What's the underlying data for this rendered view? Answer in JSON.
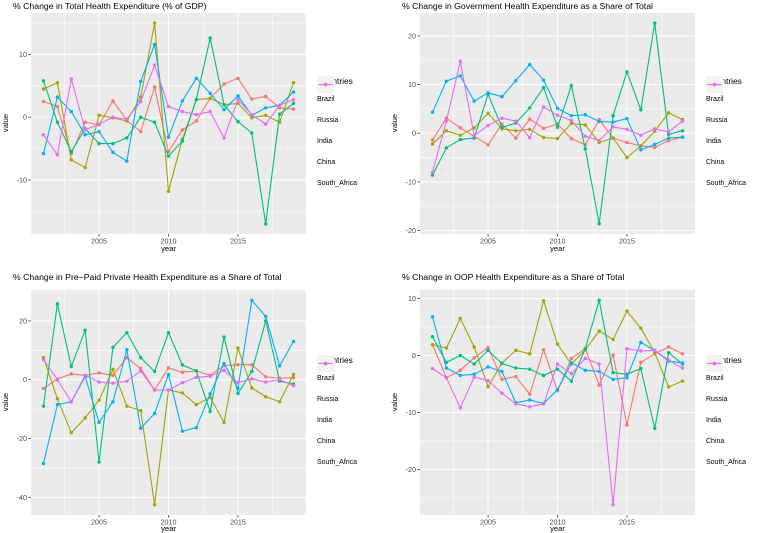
{
  "figure": {
    "background": "#FFFFFF",
    "panel_background": "#EBEBEB",
    "grid_color": "#FFFFFF",
    "tick_text_color": "#4D4D4D",
    "tick_mark_color": "#333333"
  },
  "legend": {
    "title": "Countries",
    "position": "right",
    "entries": [
      "Brazil",
      "Russia",
      "India",
      "China",
      "South_Africa"
    ]
  },
  "palette": {
    "Brazil": "#F8766D",
    "Russia": "#A3A500",
    "India": "#00BF7D",
    "China": "#00B0F6",
    "South_Africa": "#E76BF3"
  },
  "chart_data": [
    {
      "type": "line",
      "title": "% Change in Total Health Expenditure (% of GDP)",
      "xlabel": "year",
      "ylabel": "value",
      "legend_title": "Countries",
      "legend_position": "right",
      "grid": true,
      "x": [
        2001,
        2002,
        2003,
        2004,
        2005,
        2006,
        2007,
        2008,
        2009,
        2010,
        2011,
        2012,
        2013,
        2014,
        2015,
        2016,
        2017,
        2018,
        2019
      ],
      "x_ticks": [
        2005,
        2010,
        2015
      ],
      "x_minor": [
        2002.5,
        2007.5,
        2012.5,
        2017.5
      ],
      "xlim": [
        2000.1,
        2019.9
      ],
      "y_ticks": [
        -10,
        0,
        10
      ],
      "y_minor": [
        -15,
        -5,
        5,
        15
      ],
      "ylim": [
        -18.6,
        16.6
      ],
      "series": [
        {
          "name": "Brazil",
          "color": "#F8766D",
          "values": [
            2.5,
            1.7,
            -5.8,
            -0.8,
            -1.2,
            2.6,
            -0.5,
            -2.3,
            4.8,
            -5.5,
            -2.0,
            -0.6,
            3.0,
            5.3,
            6.2,
            2.9,
            3.3,
            1.5,
            1.3
          ]
        },
        {
          "name": "Russia",
          "color": "#A3A500",
          "values": [
            4.5,
            5.5,
            -6.8,
            -8.0,
            0.3,
            -0.1,
            -0.6,
            3.2,
            15.0,
            -11.8,
            -3.5,
            2.8,
            3.0,
            2.0,
            2.2,
            -0.1,
            0.3,
            -0.8,
            5.5
          ]
        },
        {
          "name": "India",
          "color": "#00BF7D",
          "values": [
            5.8,
            -0.8,
            -5.5,
            -1.8,
            -4.2,
            -4.2,
            -3.3,
            0.0,
            -0.8,
            -6.2,
            -3.8,
            2.8,
            12.6,
            2.0,
            -0.7,
            -2.5,
            -17.0,
            0.5,
            2.2
          ]
        },
        {
          "name": "China",
          "color": "#00B0F6",
          "values": [
            -5.8,
            3.2,
            0.9,
            -2.8,
            -2.3,
            -5.6,
            -7.0,
            5.7,
            11.6,
            -3.2,
            2.6,
            6.2,
            3.8,
            1.2,
            3.4,
            0.3,
            1.5,
            1.9,
            4.0
          ]
        },
        {
          "name": "South_Africa",
          "color": "#E76BF3",
          "values": [
            -2.8,
            -6.0,
            6.1,
            -2.0,
            -1.1,
            0.0,
            -0.3,
            2.5,
            8.3,
            1.7,
            0.9,
            0.4,
            0.9,
            -3.3,
            2.8,
            0.4,
            -1.1,
            1.9,
            2.8
          ]
        }
      ]
    },
    {
      "type": "line",
      "title": "% Change in Government Health Expenditure as a Share of Total",
      "xlabel": "year",
      "ylabel": "value",
      "legend_title": "Countries",
      "legend_position": "right",
      "grid": true,
      "x": [
        2001,
        2002,
        2003,
        2004,
        2005,
        2006,
        2007,
        2008,
        2009,
        2010,
        2011,
        2012,
        2013,
        2014,
        2015,
        2016,
        2017,
        2018,
        2019
      ],
      "x_ticks": [
        2005,
        2010,
        2015
      ],
      "x_minor": [
        2002.5,
        2007.5,
        2012.5,
        2017.5
      ],
      "xlim": [
        2000.1,
        2019.9
      ],
      "y_ticks": [
        -20,
        -10,
        0,
        10,
        20
      ],
      "y_minor": [
        -15,
        -5,
        5,
        15
      ],
      "ylim": [
        -20.7,
        24.7
      ],
      "series": [
        {
          "name": "Brazil",
          "color": "#F8766D",
          "values": [
            -1.4,
            3.1,
            1.1,
            -0.6,
            -2.4,
            1.9,
            -1.0,
            2.9,
            1.0,
            1.9,
            -1.1,
            -2.4,
            2.8,
            -1.0,
            -1.9,
            -2.6,
            -2.9,
            -1.5,
            -0.8
          ]
        },
        {
          "name": "Russia",
          "color": "#A3A500",
          "values": [
            -2.2,
            0.5,
            -0.4,
            1.1,
            4.1,
            0.9,
            0.5,
            0.8,
            -0.9,
            -1.1,
            2.0,
            1.7,
            -1.9,
            -1.0,
            -5.0,
            -2.6,
            0.4,
            4.2,
            2.8
          ]
        },
        {
          "name": "India",
          "color": "#00BF7D",
          "values": [
            -8.6,
            -3.0,
            -1.3,
            -1.0,
            8.0,
            1.2,
            2.1,
            5.2,
            9.4,
            1.2,
            9.8,
            -3.2,
            -18.6,
            3.6,
            12.6,
            4.8,
            22.6,
            -0.2,
            0.5
          ]
        },
        {
          "name": "China",
          "color": "#00B0F6",
          "values": [
            4.3,
            10.7,
            11.8,
            6.6,
            8.3,
            7.5,
            10.8,
            14.1,
            10.9,
            5.1,
            3.6,
            3.8,
            2.4,
            2.3,
            3.0,
            -3.4,
            -2.3,
            -1.0,
            -0.8
          ]
        },
        {
          "name": "South_Africa",
          "color": "#E76BF3",
          "values": [
            -8.0,
            2.5,
            14.8,
            -0.5,
            1.6,
            3.1,
            2.5,
            -0.9,
            5.4,
            3.7,
            2.6,
            -0.6,
            -1.5,
            1.3,
            0.8,
            -0.4,
            0.9,
            0.3,
            2.5
          ]
        }
      ]
    },
    {
      "type": "line",
      "title": "% Change in Pre−Paid Private Health Expenditure as a Share of Total",
      "xlabel": "year",
      "ylabel": "value",
      "legend_title": "Countries",
      "legend_position": "right",
      "grid": true,
      "x": [
        2001,
        2002,
        2003,
        2004,
        2005,
        2006,
        2007,
        2008,
        2009,
        2010,
        2011,
        2012,
        2013,
        2014,
        2015,
        2016,
        2017,
        2018,
        2019
      ],
      "x_ticks": [
        2005,
        2010,
        2015
      ],
      "x_minor": [
        2002.5,
        2007.5,
        2012.5,
        2017.5
      ],
      "xlim": [
        2000.1,
        2019.9
      ],
      "y_ticks": [
        -40,
        -20,
        0,
        20
      ],
      "y_minor": [
        -30,
        -10,
        10,
        30
      ],
      "ylim": [
        -46,
        30.5
      ],
      "series": [
        {
          "name": "Brazil",
          "color": "#F8766D",
          "values": [
            -3.0,
            0.2,
            2.0,
            1.5,
            2.3,
            1.5,
            7.5,
            3.8,
            -3.5,
            4.0,
            2.5,
            3.0,
            1.5,
            4.8,
            5.1,
            5.1,
            1.0,
            0.5,
            0.7
          ]
        },
        {
          "name": "Russia",
          "color": "#A3A500",
          "values": [
            7.5,
            -6.5,
            -18.0,
            -13.0,
            -7.0,
            3.5,
            -9.0,
            -10.5,
            -42.5,
            -3.5,
            -4.5,
            -8.5,
            -6.0,
            -14.5,
            10.8,
            -2.8,
            -5.8,
            -7.5,
            1.8
          ]
        },
        {
          "name": "India",
          "color": "#00BF7D",
          "values": [
            -9.0,
            25.8,
            4.5,
            16.8,
            -28.0,
            11.0,
            16.0,
            7.5,
            2.8,
            16.0,
            5.0,
            3.0,
            -10.8,
            14.5,
            -4.7,
            2.8,
            20.0,
            -0.5,
            -1.5
          ]
        },
        {
          "name": "China",
          "color": "#00B0F6",
          "values": [
            -28.5,
            -8.5,
            -7.5,
            1.0,
            -14.5,
            -7.5,
            10.2,
            -16.5,
            -11.5,
            1.8,
            -17.5,
            -16.3,
            -4.8,
            5.5,
            -3.0,
            27.0,
            21.5,
            4.7,
            13.0
          ]
        },
        {
          "name": "South_Africa",
          "color": "#E76BF3",
          "values": [
            6.8,
            0.0,
            -7.5,
            1.5,
            -0.8,
            -1.2,
            -0.5,
            3.0,
            -3.5,
            -3.5,
            -1.0,
            0.8,
            1.2,
            3.2,
            -1.0,
            0.3,
            -0.8,
            0.0,
            -2.0
          ]
        }
      ]
    },
    {
      "type": "line",
      "title": "% Change in OOP Health Expenditure as a Share of Total",
      "xlabel": "year",
      "ylabel": "value",
      "legend_title": "Countries",
      "legend_position": "right",
      "grid": true,
      "x": [
        2001,
        2002,
        2003,
        2004,
        2005,
        2006,
        2007,
        2008,
        2009,
        2010,
        2011,
        2012,
        2013,
        2014,
        2015,
        2016,
        2017,
        2018,
        2019
      ],
      "x_ticks": [
        2005,
        2010,
        2015
      ],
      "x_minor": [
        2002.5,
        2007.5,
        2012.5,
        2017.5
      ],
      "xlim": [
        2000.1,
        2019.9
      ],
      "y_ticks": [
        -20,
        -10,
        0,
        10
      ],
      "y_minor": [
        -25,
        -15,
        -5,
        5
      ],
      "ylim": [
        -28,
        11.5
      ],
      "series": [
        {
          "name": "Brazil",
          "color": "#F8766D",
          "values": [
            1.9,
            -3.9,
            -2.6,
            -0.4,
            1.4,
            -4.2,
            -3.7,
            -6.8,
            1.0,
            -6.2,
            -0.5,
            1.2,
            -5.2,
            0.1,
            -12.2,
            -1.2,
            0.3,
            1.5,
            0.3
          ]
        },
        {
          "name": "Russia",
          "color": "#A3A500",
          "values": [
            1.9,
            1.3,
            6.5,
            1.5,
            -5.5,
            -1.3,
            0.9,
            0.3,
            9.6,
            2.0,
            -1.5,
            1.0,
            4.3,
            2.8,
            7.8,
            4.8,
            0.5,
            -5.5,
            -4.5
          ]
        },
        {
          "name": "India",
          "color": "#00BF7D",
          "values": [
            3.3,
            -1.2,
            0.0,
            -1.5,
            0.9,
            -1.4,
            -2.2,
            -2.4,
            -3.5,
            -2.4,
            -4.5,
            1.2,
            9.7,
            -3.0,
            -3.3,
            -2.3,
            -12.8,
            0.5,
            -1.5
          ]
        },
        {
          "name": "China",
          "color": "#00B0F6",
          "values": [
            6.8,
            -2.2,
            -3.5,
            -3.3,
            -2.0,
            -2.8,
            -8.3,
            -7.8,
            -8.4,
            -6.0,
            -1.3,
            -2.6,
            -2.8,
            -4.2,
            -3.9,
            2.3,
            0.9,
            -1.0,
            -1.3
          ]
        },
        {
          "name": "South_Africa",
          "color": "#E76BF3",
          "values": [
            -2.3,
            -3.9,
            -9.2,
            -3.8,
            -4.4,
            -6.6,
            -8.5,
            -9.0,
            -8.5,
            -1.5,
            -3.2,
            -0.5,
            -1.5,
            -26.2,
            1.2,
            0.8,
            0.9,
            -0.8,
            -2.2
          ]
        }
      ]
    }
  ]
}
